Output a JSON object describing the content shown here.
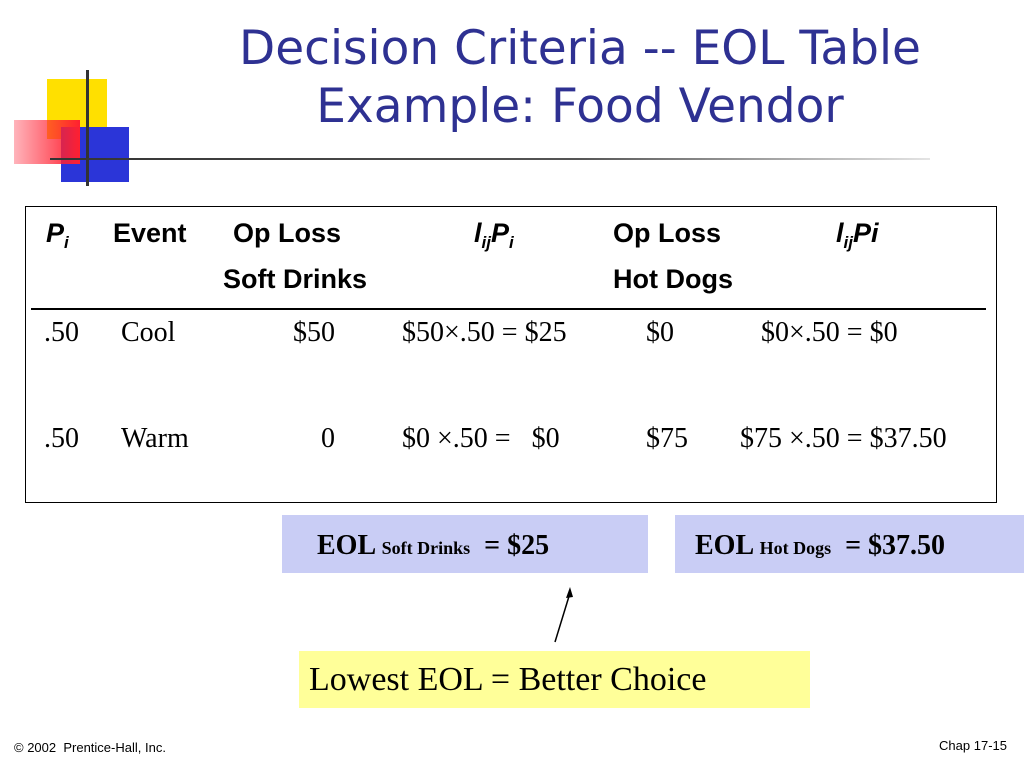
{
  "slide": {
    "title_line1": "Decision Criteria -- EOL Table",
    "title_line2": "Example: Food Vendor"
  },
  "table": {
    "headers": {
      "pi_main": "P",
      "pi_sub": "i",
      "event": "Event",
      "oploss1_line1": "Op Loss",
      "oploss1_line2": "Soft Drinks",
      "lijpi1_l": "l",
      "lijpi1_sub1": "ij",
      "lijpi1_p": "P",
      "lijpi1_sub2": "i",
      "oploss2_line1": "Op Loss",
      "oploss2_line2": "Hot Dogs",
      "lijpi2_l": "l",
      "lijpi2_sub1": "ij",
      "lijpi2_p": "Pi"
    },
    "rows": [
      {
        "prob": ".50",
        "event": "Cool",
        "oploss_soft": "$50",
        "calc_soft": "$50×.50 = $25",
        "oploss_hot": "$0",
        "calc_hot": "$0×.50 = $0"
      },
      {
        "prob": ".50",
        "event": "Warm",
        "oploss_soft": "0",
        "calc_soft": "$0 ×.50 =   $0",
        "oploss_hot": "$75",
        "calc_hot": "$75 ×.50 = $37.50"
      }
    ]
  },
  "eol": {
    "soft": {
      "prefix": "EOL",
      "sub": "Soft Drinks",
      "value": "= $25"
    },
    "hot": {
      "prefix": "EOL",
      "sub": "Hot Dogs",
      "value": "= $37.50"
    }
  },
  "callout": "Lowest EOL = Better Choice",
  "footer": {
    "copyright": "© 2002  Prentice-Hall, Inc.",
    "chapter": "Chap 17-15"
  },
  "colors": {
    "title": "#2e3192",
    "eol_box": "#c9cdf5",
    "callout_box": "#ffff99",
    "deco_yellow": "#ffe000",
    "deco_blue": "#2b35d8",
    "deco_red": "#ff2030"
  }
}
